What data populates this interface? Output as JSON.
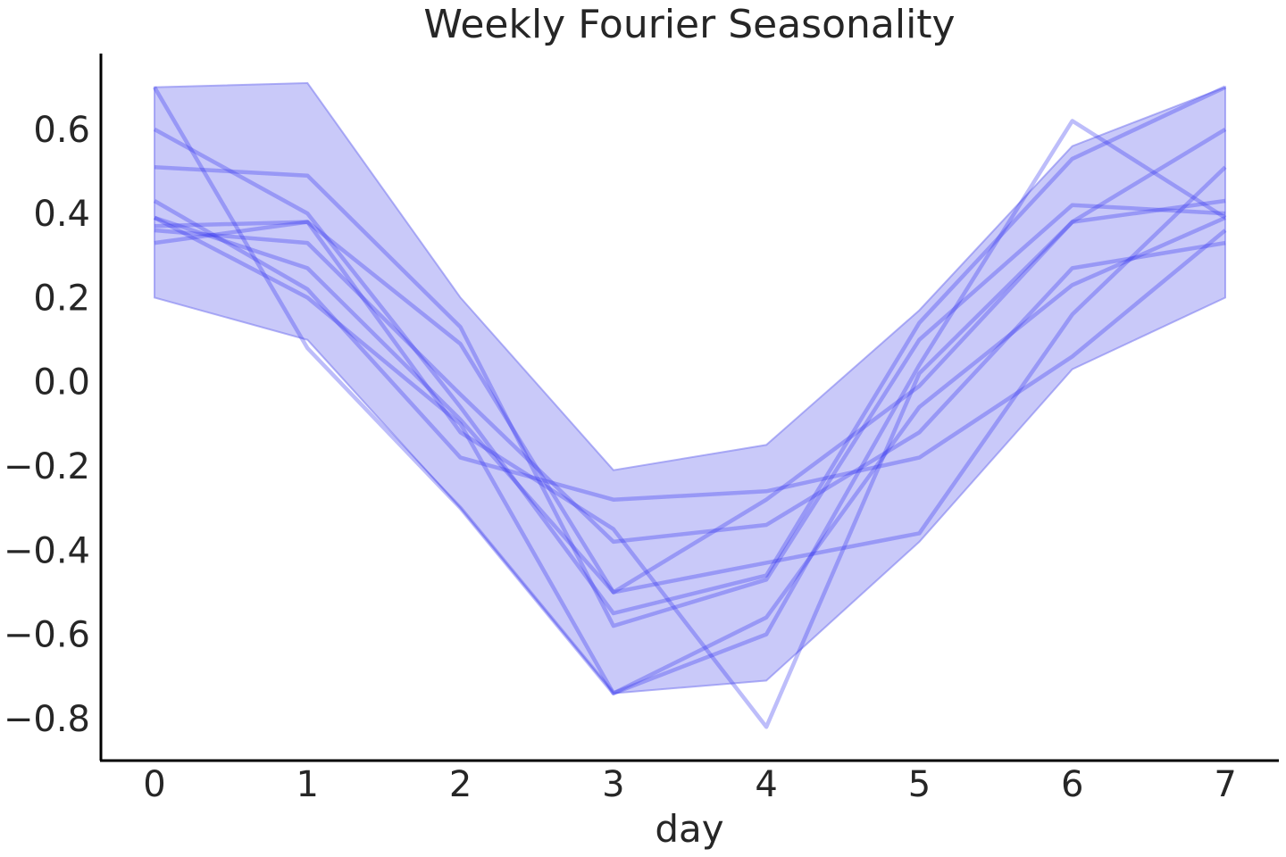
{
  "chart_data": {
    "type": "line",
    "title": "Weekly Fourier Seasonality",
    "xlabel": "day",
    "ylabel": "",
    "x": [
      0,
      1,
      2,
      3,
      4,
      5,
      6,
      7
    ],
    "xlim": [
      -0.35,
      7.35
    ],
    "ylim": [
      -0.9,
      0.78
    ],
    "xticks": [
      {
        "v": 0,
        "label": "0"
      },
      {
        "v": 1,
        "label": "1"
      },
      {
        "v": 2,
        "label": "2"
      },
      {
        "v": 3,
        "label": "3"
      },
      {
        "v": 4,
        "label": "4"
      },
      {
        "v": 5,
        "label": "5"
      },
      {
        "v": 6,
        "label": "6"
      },
      {
        "v": 7,
        "label": "7"
      }
    ],
    "yticks": [
      {
        "v": 0.6,
        "label": "0.6"
      },
      {
        "v": 0.4,
        "label": "0.4"
      },
      {
        "v": 0.2,
        "label": "0.2"
      },
      {
        "v": 0.0,
        "label": "0.0"
      },
      {
        "v": -0.2,
        "label": "−0.2"
      },
      {
        "v": -0.4,
        "label": "−0.4"
      },
      {
        "v": -0.6,
        "label": "−0.6"
      },
      {
        "v": -0.8,
        "label": "−0.8"
      }
    ],
    "grid": false,
    "colors": {
      "band": "#7f7ff0",
      "line": "#3333ee"
    },
    "band": {
      "lower": [
        0.2,
        0.1,
        -0.3,
        -0.74,
        -0.71,
        -0.38,
        0.03,
        0.2
      ],
      "upper": [
        0.7,
        0.71,
        0.2,
        -0.21,
        -0.15,
        0.17,
        0.56,
        0.7
      ]
    },
    "series": [
      {
        "values": [
          0.7,
          0.08,
          -0.3,
          -0.74,
          -0.6,
          0.04,
          0.62,
          0.39
        ]
      },
      {
        "values": [
          0.6,
          0.4,
          -0.06,
          -0.55,
          -0.46,
          0.14,
          0.53,
          0.7
        ]
      },
      {
        "values": [
          0.51,
          0.49,
          0.13,
          -0.58,
          -0.47,
          0.1,
          0.42,
          0.4
        ]
      },
      {
        "values": [
          0.43,
          0.22,
          -0.18,
          -0.28,
          -0.26,
          -0.18,
          0.06,
          0.36
        ]
      },
      {
        "values": [
          0.39,
          0.27,
          -0.09,
          -0.5,
          -0.28,
          -0.01,
          0.38,
          0.6
        ]
      },
      {
        "values": [
          0.39,
          0.2,
          -0.1,
          -0.74,
          -0.56,
          -0.06,
          0.23,
          0.39
        ]
      },
      {
        "values": [
          0.37,
          0.38,
          0.09,
          -0.5,
          -0.43,
          -0.36,
          0.16,
          0.51
        ]
      },
      {
        "values": [
          0.36,
          0.33,
          -0.03,
          -0.38,
          -0.34,
          -0.12,
          0.27,
          0.33
        ]
      },
      {
        "values": [
          0.33,
          0.38,
          -0.12,
          -0.35,
          -0.82,
          0.02,
          0.38,
          0.43
        ]
      }
    ]
  }
}
